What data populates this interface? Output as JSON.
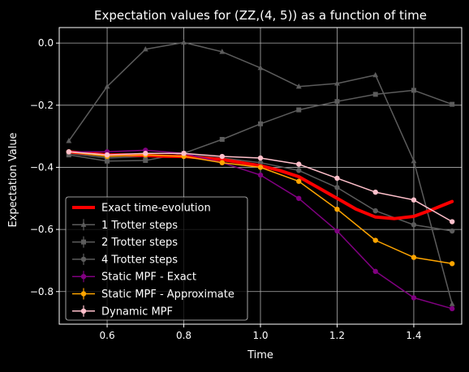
{
  "chart_data": {
    "type": "line",
    "title": "Expectation values for (ZZ,(4, 5)) as a function of time",
    "xlabel": "Time",
    "ylabel": "Expectation Value",
    "xlim": [
      0.475,
      1.525
    ],
    "ylim": [
      -0.905,
      0.05
    ],
    "xticks": [
      0.6,
      0.8,
      1.0,
      1.2,
      1.4
    ],
    "xtick_labels": [
      "0.6",
      "0.8",
      "1.0",
      "1.2",
      "1.4"
    ],
    "yticks": [
      0.0,
      -0.2,
      -0.4,
      -0.6,
      -0.8
    ],
    "ytick_labels": [
      "0.0",
      "−0.2",
      "−0.4",
      "−0.6",
      "−0.8"
    ],
    "grid": true,
    "legend_position": "lower-left",
    "background": "#000000",
    "x": [
      0.5,
      0.6,
      0.7,
      0.8,
      0.9,
      1.0,
      1.1,
      1.2,
      1.3,
      1.4,
      1.5
    ],
    "series": [
      {
        "name": "1 Trotter steps",
        "color": "#5c5c5c",
        "marker": "triangle",
        "width": 1.5,
        "values": [
          -0.315,
          -0.14,
          -0.02,
          0.002,
          -0.028,
          -0.08,
          -0.14,
          -0.13,
          -0.103,
          -0.38,
          -0.84
        ]
      },
      {
        "name": "2 Trotter steps",
        "color": "#5c5c5c",
        "marker": "square",
        "width": 1.5,
        "values": [
          -0.36,
          -0.38,
          -0.378,
          -0.355,
          -0.31,
          -0.26,
          -0.215,
          -0.188,
          -0.165,
          -0.152,
          -0.197
        ]
      },
      {
        "name": "4 Trotter steps",
        "color": "#5c5c5c",
        "marker": "circle",
        "width": 1.5,
        "values": [
          -0.355,
          -0.37,
          -0.365,
          -0.36,
          -0.37,
          -0.385,
          -0.41,
          -0.465,
          -0.54,
          -0.585,
          -0.605
        ]
      },
      {
        "name": "Static MPF - Exact",
        "color": "#800080",
        "marker": "circle",
        "width": 1.5,
        "values": [
          -0.35,
          -0.35,
          -0.345,
          -0.355,
          -0.385,
          -0.425,
          -0.5,
          -0.605,
          -0.735,
          -0.82,
          -0.855
        ]
      },
      {
        "name": "Static MPF - Approximate",
        "color": "#ffa500",
        "marker": "circle",
        "width": 1.5,
        "values": [
          -0.35,
          -0.365,
          -0.36,
          -0.365,
          -0.385,
          -0.4,
          -0.445,
          -0.535,
          -0.635,
          -0.69,
          -0.71
        ]
      },
      {
        "name": "Dynamic MPF",
        "color": "#ffc0cb",
        "marker": "circle",
        "width": 1.5,
        "values": [
          -0.35,
          -0.36,
          -0.355,
          -0.355,
          -0.365,
          -0.37,
          -0.39,
          -0.435,
          -0.48,
          -0.505,
          -0.575
        ]
      },
      {
        "name": "Exact time-evolution",
        "color": "#ff0000",
        "marker": "none",
        "width": 4,
        "x": [
          0.5,
          0.55,
          0.6,
          0.65,
          0.7,
          0.75,
          0.8,
          0.85,
          0.9,
          0.95,
          1.0,
          1.05,
          1.1,
          1.15,
          1.2,
          1.25,
          1.3,
          1.35,
          1.4,
          1.45,
          1.5
        ],
        "values": [
          -0.35,
          -0.355,
          -0.36,
          -0.36,
          -0.362,
          -0.364,
          -0.365,
          -0.37,
          -0.375,
          -0.385,
          -0.395,
          -0.41,
          -0.43,
          -0.465,
          -0.5,
          -0.535,
          -0.56,
          -0.565,
          -0.558,
          -0.535,
          -0.51
        ]
      }
    ],
    "legend_order": [
      "Exact time-evolution",
      "1 Trotter steps",
      "2 Trotter steps",
      "4 Trotter steps",
      "Static MPF - Exact",
      "Static MPF - Approximate",
      "Dynamic MPF"
    ]
  }
}
